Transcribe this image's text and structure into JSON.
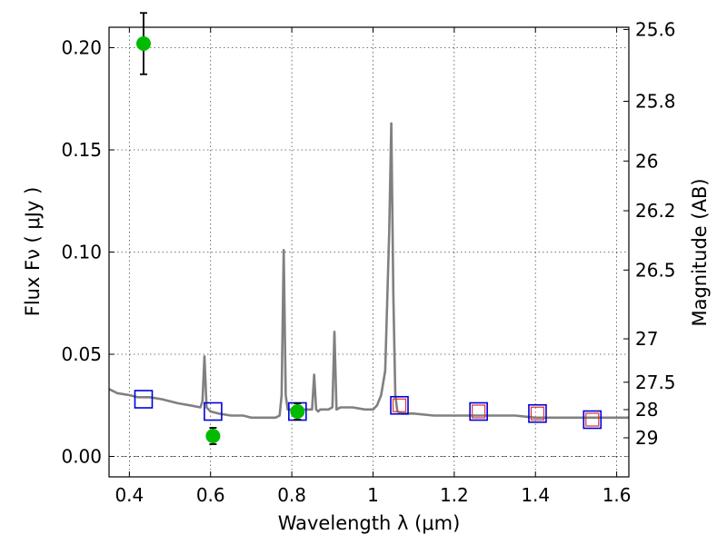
{
  "chart_data": {
    "type": "line",
    "title": "",
    "xlabel": "Wavelength  λ (μm)",
    "ylabel": "Flux  Fν  ( μJy )",
    "y2label": "Magnitude (AB)",
    "xlim": [
      0.35,
      1.63
    ],
    "ylim": [
      -0.01,
      0.21
    ],
    "grid": true,
    "x_ticks": [
      {
        "v": 0.4,
        "label": "0.4"
      },
      {
        "v": 0.6,
        "label": "0.6"
      },
      {
        "v": 0.8,
        "label": "0.8"
      },
      {
        "v": 1.0,
        "label": "1"
      },
      {
        "v": 1.2,
        "label": "1.2"
      },
      {
        "v": 1.4,
        "label": "1.4"
      },
      {
        "v": 1.6,
        "label": "1.6"
      }
    ],
    "y_ticks": [
      {
        "v": 0.0,
        "label": "0.00"
      },
      {
        "v": 0.05,
        "label": "0.05"
      },
      {
        "v": 0.1,
        "label": "0.10"
      },
      {
        "v": 0.15,
        "label": "0.15"
      },
      {
        "v": 0.2,
        "label": "0.20"
      }
    ],
    "mag_ticks": [
      {
        "v": 25.6,
        "label": "25.6"
      },
      {
        "v": 25.8,
        "label": "25.8"
      },
      {
        "v": 26.0,
        "label": "26"
      },
      {
        "v": 26.2,
        "label": "26.2"
      },
      {
        "v": 26.5,
        "label": "26.5"
      },
      {
        "v": 27.0,
        "label": "27"
      },
      {
        "v": 27.5,
        "label": "27.5"
      },
      {
        "v": 28.0,
        "label": "28"
      },
      {
        "v": 29.0,
        "label": "29"
      }
    ],
    "colors": {
      "model": "#808080",
      "observed": "#00bb00",
      "model_box": "#0000dd",
      "model_box_inner": "#dd3333"
    },
    "series": [
      {
        "kind": "model_sed",
        "x": [
          0.35,
          0.37,
          0.4,
          0.42,
          0.45,
          0.48,
          0.5,
          0.52,
          0.55,
          0.575,
          0.58,
          0.585,
          0.59,
          0.6,
          0.62,
          0.65,
          0.68,
          0.7,
          0.72,
          0.74,
          0.76,
          0.77,
          0.775,
          0.78,
          0.785,
          0.79,
          0.8,
          0.83,
          0.85,
          0.855,
          0.86,
          0.865,
          0.87,
          0.89,
          0.9,
          0.905,
          0.91,
          0.92,
          0.95,
          0.98,
          1.0,
          1.01,
          1.02,
          1.03,
          1.04,
          1.045,
          1.05,
          1.055,
          1.06,
          1.07,
          1.1,
          1.15,
          1.2,
          1.25,
          1.3,
          1.35,
          1.4,
          1.45,
          1.5,
          1.55,
          1.6,
          1.63
        ],
        "y": [
          0.033,
          0.031,
          0.03,
          0.029,
          0.029,
          0.028,
          0.027,
          0.026,
          0.025,
          0.024,
          0.027,
          0.049,
          0.024,
          0.022,
          0.021,
          0.02,
          0.02,
          0.019,
          0.019,
          0.019,
          0.019,
          0.02,
          0.03,
          0.101,
          0.03,
          0.023,
          0.023,
          0.023,
          0.023,
          0.04,
          0.023,
          0.022,
          0.023,
          0.023,
          0.024,
          0.061,
          0.023,
          0.024,
          0.024,
          0.023,
          0.023,
          0.025,
          0.03,
          0.042,
          0.11,
          0.163,
          0.08,
          0.03,
          0.022,
          0.021,
          0.021,
          0.02,
          0.02,
          0.02,
          0.02,
          0.02,
          0.019,
          0.019,
          0.019,
          0.019,
          0.019,
          0.019
        ]
      },
      {
        "kind": "observed",
        "points": [
          {
            "x": 0.435,
            "y": 0.202,
            "err": 0.015
          },
          {
            "x": 0.606,
            "y": 0.01,
            "err": 0.004
          },
          {
            "x": 0.814,
            "y": 0.022,
            "err": 0.004
          }
        ]
      },
      {
        "kind": "model_photometry",
        "points": [
          {
            "x": 0.435,
            "y": 0.028
          },
          {
            "x": 0.606,
            "y": 0.022
          },
          {
            "x": 0.814,
            "y": 0.022
          },
          {
            "x": 1.065,
            "y": 0.025
          },
          {
            "x": 1.26,
            "y": 0.022
          },
          {
            "x": 1.405,
            "y": 0.021
          },
          {
            "x": 1.54,
            "y": 0.018
          }
        ]
      }
    ]
  }
}
